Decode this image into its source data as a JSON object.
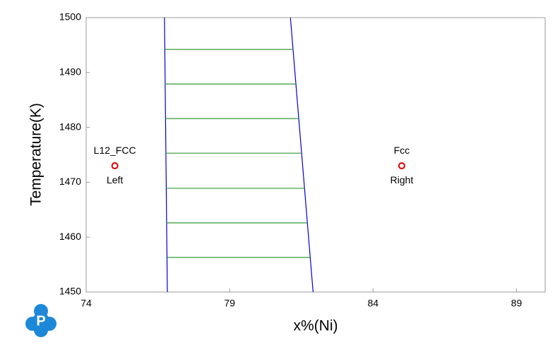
{
  "chart_data": {
    "type": "line",
    "x_label": "x%(Ni)",
    "y_label": "Temperature(K)",
    "xlim": [
      74,
      90
    ],
    "ylim": [
      1450,
      1500
    ],
    "xticks": [
      74,
      79,
      84,
      89
    ],
    "yticks": [
      1450,
      1460,
      1470,
      1480,
      1490,
      1500
    ],
    "grid": false,
    "series": [
      {
        "color": "#0000cc",
        "x": [
          76.73,
          76.83
        ],
        "y": [
          1500,
          1450
        ]
      },
      {
        "color": "#0000cc",
        "x": [
          81.12,
          81.91
        ],
        "y": [
          1500,
          1450
        ]
      },
      {
        "color": "#339933",
        "x": [
          76.74,
          81.21
        ],
        "y": [
          1494.2,
          1494.2
        ]
      },
      {
        "color": "#339933",
        "x": [
          76.75,
          81.31
        ],
        "y": [
          1487.9,
          1487.9
        ]
      },
      {
        "color": "#339933",
        "x": [
          76.77,
          81.41
        ],
        "y": [
          1481.6,
          1481.6
        ]
      },
      {
        "color": "#339933",
        "x": [
          76.78,
          81.51
        ],
        "y": [
          1475.3,
          1475.3
        ]
      },
      {
        "color": "#339933",
        "x": [
          76.79,
          81.61
        ],
        "y": [
          1468.9,
          1468.9
        ]
      },
      {
        "color": "#339933",
        "x": [
          76.8,
          81.71
        ],
        "y": [
          1462.6,
          1462.6
        ]
      },
      {
        "color": "#339933",
        "x": [
          76.82,
          81.81
        ],
        "y": [
          1456.3,
          1456.3
        ]
      }
    ],
    "points": [
      {
        "x": 75.0,
        "y": 1473,
        "color": "#e00000",
        "label_top": "L12_FCC",
        "label_bottom": "Left"
      },
      {
        "x": 85.0,
        "y": 1473,
        "color": "#e00000",
        "label_top": "Fcc",
        "label_bottom": "Right"
      }
    ]
  }
}
